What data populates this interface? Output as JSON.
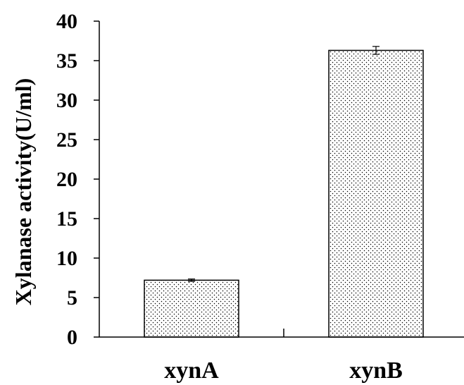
{
  "chart_data": {
    "type": "bar",
    "title": "",
    "xlabel": "",
    "ylabel": "Xylanase activity(U/ml)",
    "categories": [
      "xynA",
      "xynB"
    ],
    "values": [
      7.2,
      36.3
    ],
    "errors": [
      0.15,
      0.5
    ],
    "ylim": [
      0,
      40
    ],
    "yticks": [
      0,
      5,
      10,
      15,
      20,
      25,
      30,
      35,
      40
    ],
    "ytick_labels": [
      "0",
      "5",
      "10",
      "15",
      "20",
      "25",
      "30",
      "35",
      "40"
    ],
    "grid": false,
    "legend": "none",
    "bar_fill": "dotted",
    "colors": {
      "axis": "#000000",
      "bar_fill": "#ffffff",
      "bar_dots": "#000000",
      "bar_edge": "#000000"
    }
  }
}
